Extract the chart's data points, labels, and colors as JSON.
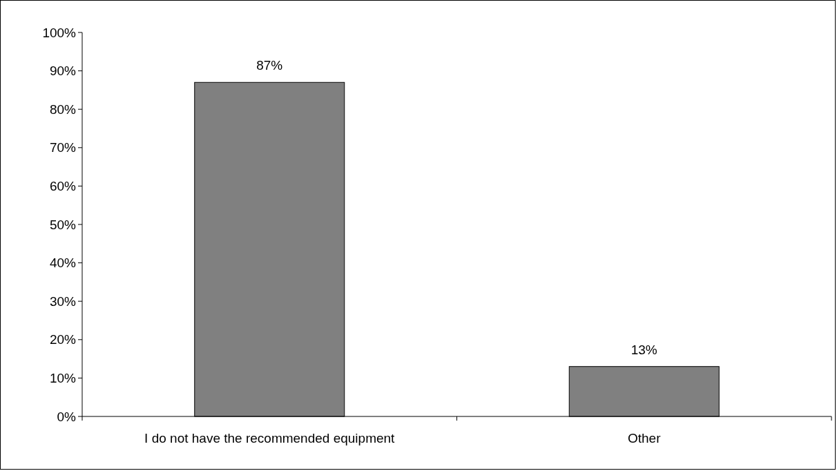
{
  "chart_data": {
    "type": "bar",
    "categories": [
      "I do not have the recommended equipment",
      "Other"
    ],
    "values": [
      87,
      13
    ],
    "color": "#808080",
    "value_labels": [
      "87%",
      "13%"
    ],
    "ylim": [
      0,
      100
    ],
    "yticks": [
      {
        "value": 0,
        "label": "0%"
      },
      {
        "value": 10,
        "label": "10%"
      },
      {
        "value": 20,
        "label": "20%"
      },
      {
        "value": 30,
        "label": "30%"
      },
      {
        "value": 40,
        "label": "40%"
      },
      {
        "value": 50,
        "label": "50%"
      },
      {
        "value": 60,
        "label": "60%"
      },
      {
        "value": 70,
        "label": "70%"
      },
      {
        "value": 80,
        "label": "80%"
      },
      {
        "value": 90,
        "label": "90%"
      },
      {
        "value": 100,
        "label": "100%"
      }
    ],
    "grid": false
  }
}
